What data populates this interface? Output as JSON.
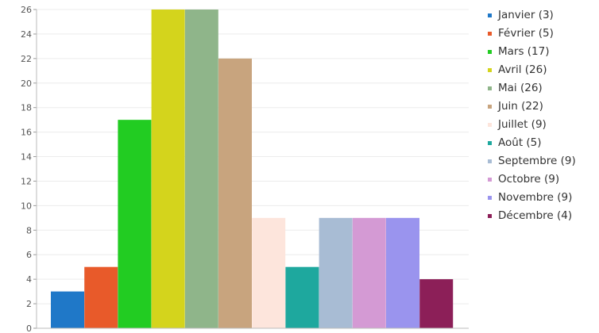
{
  "chart_data": {
    "type": "bar",
    "categories": [
      "Janvier",
      "Février",
      "Mars",
      "Avril",
      "Mai",
      "Juin",
      "Juillet",
      "Août",
      "Septembre",
      "Octobre",
      "Novembre",
      "Décembre"
    ],
    "values": [
      3,
      5,
      17,
      26,
      26,
      22,
      9,
      5,
      9,
      9,
      9,
      4
    ],
    "colors": [
      "#1f78c8",
      "#e85a2a",
      "#22cc22",
      "#d4d41c",
      "#8fb58a",
      "#c8a47e",
      "#fde5dc",
      "#1ea89e",
      "#a8bcd4",
      "#d49ad4",
      "#9a94ee",
      "#8c1f58"
    ],
    "legend": [
      "Janvier (3)",
      "Février (5)",
      "Mars (17)",
      "Avril (26)",
      "Mai (26)",
      "Juin (22)",
      "Juillet (9)",
      "Août (5)",
      "Septembre (9)",
      "Octobre (9)",
      "Novembre (9)",
      "Décembre (4)"
    ],
    "y_ticks": [
      0,
      2,
      4,
      6,
      8,
      10,
      12,
      14,
      16,
      18,
      20,
      22,
      24,
      26
    ],
    "ylim": [
      0,
      26
    ],
    "title": "",
    "xlabel": "",
    "ylabel": "",
    "grid": true,
    "legend_position": "right"
  }
}
